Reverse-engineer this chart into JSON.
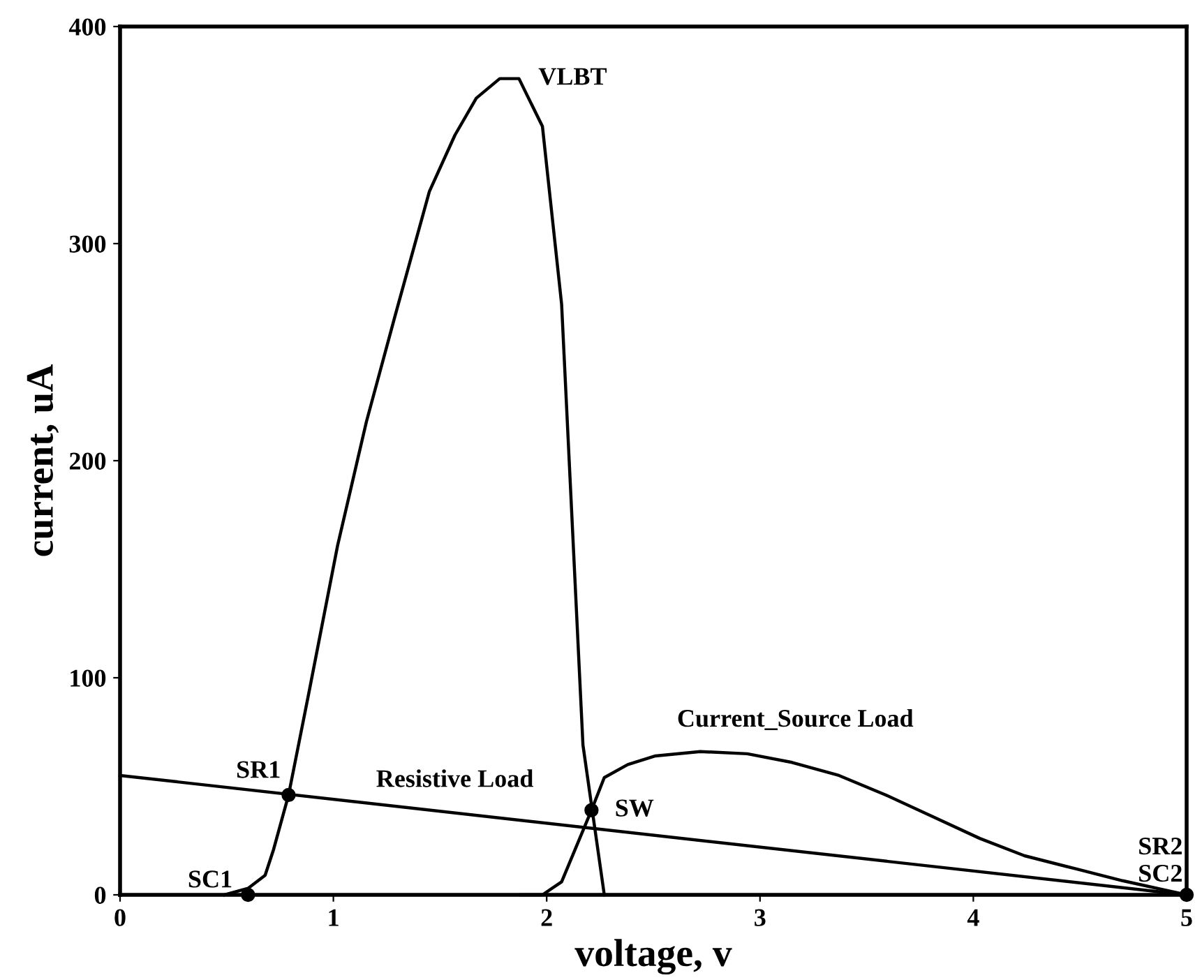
{
  "chart_data": {
    "type": "line",
    "xlabel": "voltage, v",
    "ylabel": "current, uA",
    "xlim": [
      0,
      5
    ],
    "ylim": [
      0,
      400
    ],
    "xticks": [
      0,
      1,
      2,
      3,
      4,
      5
    ],
    "yticks": [
      0,
      100,
      200,
      300,
      400
    ],
    "grid": false,
    "marker": "none",
    "line_style": "solid",
    "series": [
      {
        "color": "#000000",
        "x": [
          0.49,
          0.6,
          0.68,
          0.72,
          0.79,
          0.885,
          1.02,
          1.155,
          1.29,
          1.45,
          1.57,
          1.67,
          1.78,
          1.87,
          1.98,
          2.07,
          2.17,
          2.27
        ],
        "values": [
          0,
          3,
          9,
          21,
          46,
          93,
          161,
          218,
          267,
          324,
          350,
          367,
          376,
          376,
          354,
          272,
          69,
          0
        ]
      },
      {
        "color": "#000000",
        "x": [
          1.88,
          1.98,
          2.07,
          2.21,
          2.27,
          2.38,
          2.51,
          2.72,
          2.94,
          3.15,
          3.37,
          3.59,
          3.81,
          4.03,
          4.24,
          4.48,
          4.7,
          5
        ],
        "values": [
          0,
          0,
          6,
          39,
          54,
          60,
          64,
          66,
          65,
          61,
          55,
          46,
          36,
          26,
          18,
          12,
          6.5,
          0
        ]
      },
      {
        "color": "#000000",
        "x": [
          0,
          5
        ],
        "values": [
          55,
          0
        ]
      },
      {
        "type": "scatter",
        "color": "#000000",
        "marker": "circle",
        "x": [
          0.6,
          0.79,
          2.21,
          5
        ],
        "values": [
          0,
          46,
          39,
          0
        ]
      }
    ],
    "annotations": [
      {
        "text": "VLBT",
        "x": 1.87,
        "y": 376
      },
      {
        "text": "Resistive Load",
        "x": 1.2,
        "y": 41.8
      },
      {
        "text": "Current_Source Load",
        "x": 2.72,
        "y": 66
      },
      {
        "text": "SR1",
        "x": 0.79,
        "y": 46
      },
      {
        "text": "SC1",
        "x": 0.6,
        "y": 0
      },
      {
        "text": "SW",
        "x": 2.21,
        "y": 39
      },
      {
        "text": "SR2",
        "x": 5,
        "y": 0
      },
      {
        "text": "SC2",
        "x": 5,
        "y": 0
      }
    ]
  }
}
